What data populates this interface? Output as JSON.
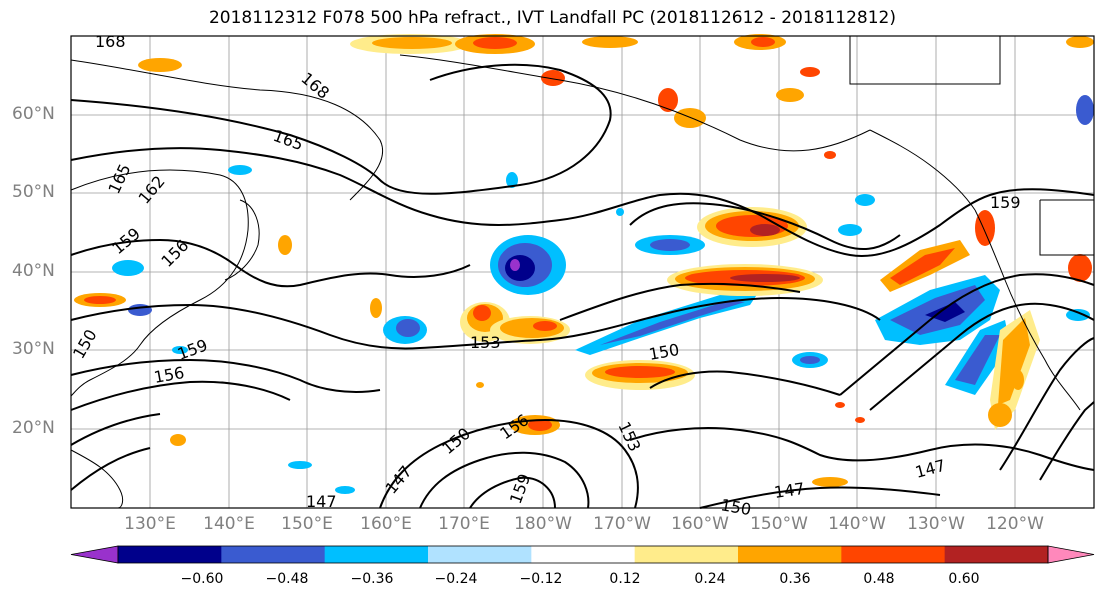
{
  "title": "2018112312 F078 500 hPa refract., IVT Landfall PC (2018112612 - 2018112812)",
  "lat_labels": [
    "60°N",
    "50°N",
    "40°N",
    "30°N",
    "20°N"
  ],
  "lon_labels": [
    "130°E",
    "140°E",
    "150°E",
    "160°E",
    "170°E",
    "180°W",
    "170°W",
    "160°W",
    "150°W",
    "140°W",
    "130°W",
    "120°W"
  ],
  "contour_labels": [
    "168",
    "168",
    "165",
    "165",
    "162",
    "159",
    "156",
    "159",
    "156",
    "150",
    "153",
    "150",
    "156",
    "153",
    "150",
    "147",
    "159",
    "147",
    "150",
    "147",
    "159",
    "147"
  ],
  "colorbar": {
    "ticks": [
      "−0.60",
      "−0.48",
      "−0.36",
      "−0.24",
      "−0.12",
      "0.12",
      "0.24",
      "0.36",
      "0.48",
      "0.60"
    ],
    "colors": [
      "#9932CC",
      "#00008B",
      "#3A5BD0",
      "#00BFFF",
      "#B0E2FF",
      "#FFFFFF",
      "#FFEC8B",
      "#FFA500",
      "#FF4500",
      "#B22222",
      "#FF88BB"
    ]
  }
}
